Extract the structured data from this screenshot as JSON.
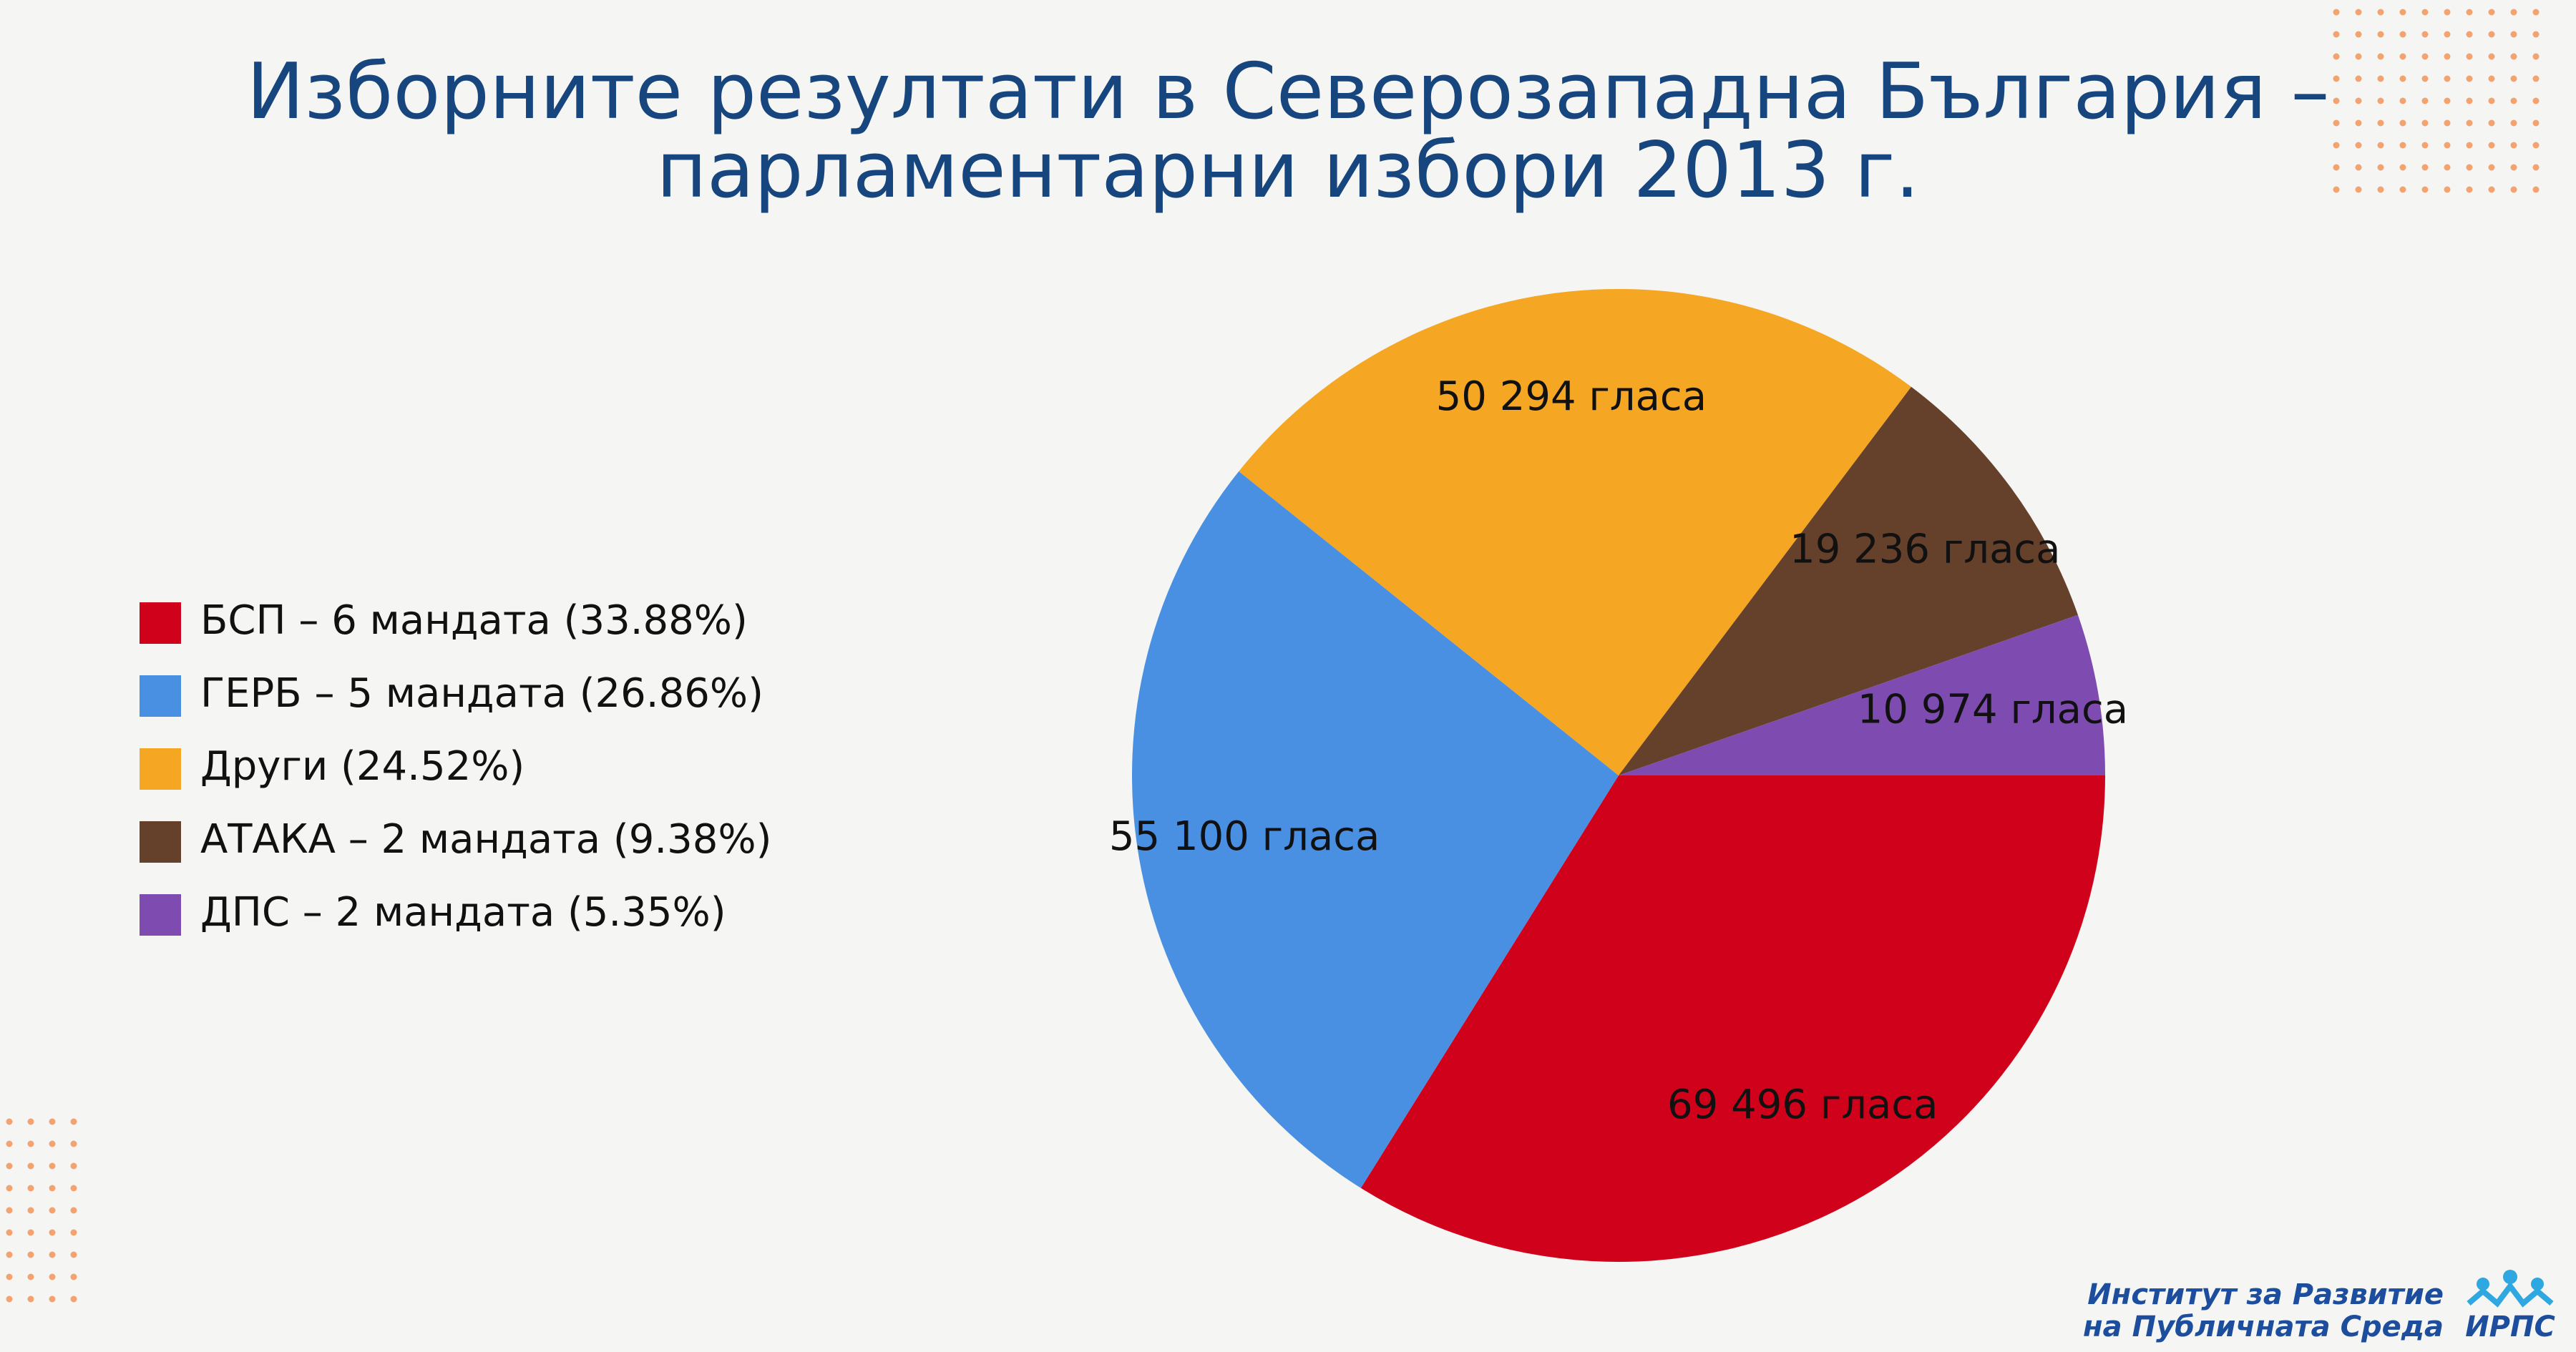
{
  "chart_data": {
    "type": "pie",
    "title": [
      "Изборните резултати в Северозападна България –",
      "парламентарни избори 2013 г."
    ],
    "series": [
      {
        "name": "БСП – 6 мандата (33.88%)",
        "color": "#d0021b",
        "values": [
          69496
        ],
        "value_labels": [
          "69 496 гласа"
        ]
      },
      {
        "name": "ГЕРБ – 5 мандата (26.86%)",
        "color": "#4a90e2",
        "values": [
          55100
        ],
        "value_labels": [
          "55 100 гласа"
        ]
      },
      {
        "name": "Други (24.52%)",
        "color": "#f5a623",
        "values": [
          50294
        ],
        "value_labels": [
          "50 294 гласа"
        ]
      },
      {
        "name": "АТАКА – 2 мандата (9.38%)",
        "color": "#65402a",
        "values": [
          19236
        ],
        "value_labels": [
          "19 236 гласа"
        ]
      },
      {
        "name": "ДПС – 2 мандата (5.35%)",
        "color": "#7e4cb0",
        "values": [
          10974
        ],
        "value_labels": [
          "10 974 гласа"
        ]
      }
    ],
    "legend": "left"
  },
  "logo": {
    "lines": [
      "Институт за Развитие",
      "на Публичната Среда"
    ],
    "acronym": "ИРПС"
  }
}
